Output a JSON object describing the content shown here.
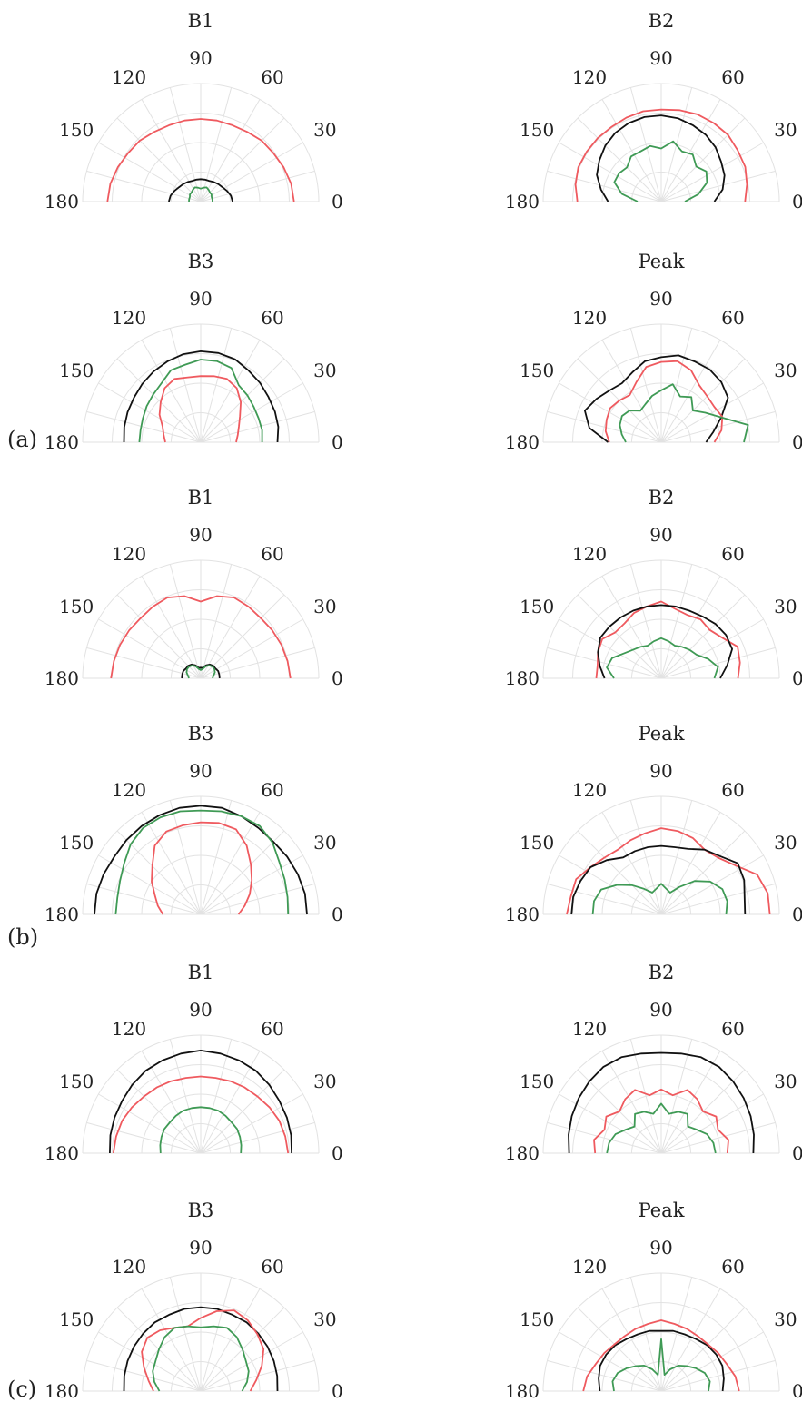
{
  "colors": {
    "black": "#111111",
    "red": "#ef5a5f",
    "green": "#3f9a55"
  },
  "panel_labels": [
    "(a)",
    "(b)",
    "(c)"
  ],
  "chart_data": [
    {
      "type": "polar-line",
      "group": "(a)",
      "title": "B1",
      "theta_ticks": [
        "0",
        "30",
        "60",
        "90",
        "120",
        "150",
        "180"
      ],
      "rlim": [
        0,
        1
      ],
      "series": [
        {
          "color": "red",
          "r": [
            0.79,
            0.78,
            0.76,
            0.74,
            0.73,
            0.71,
            0.7,
            0.7,
            0.7,
            0.7,
            0.7,
            0.71,
            0.73,
            0.74,
            0.76,
            0.78,
            0.79
          ]
        },
        {
          "color": "black",
          "r": [
            0.27,
            0.26,
            0.24,
            0.22,
            0.21,
            0.2,
            0.19,
            0.19,
            0.19,
            0.19,
            0.19,
            0.2,
            0.21,
            0.22,
            0.24,
            0.26,
            0.27
          ]
        },
        {
          "color": "green",
          "r": [
            0.1,
            0.1,
            0.1,
            0.11,
            0.11,
            0.12,
            0.13,
            0.12,
            0.11,
            0.12,
            0.13,
            0.12,
            0.11,
            0.11,
            0.1,
            0.1,
            0.1
          ]
        }
      ]
    },
    {
      "type": "polar-line",
      "group": "(a)",
      "title": "B2",
      "theta_ticks": [
        "0",
        "30",
        "60",
        "90",
        "120",
        "150",
        "180"
      ],
      "rlim": [
        0,
        1
      ],
      "series": [
        {
          "color": "red",
          "r": [
            0.71,
            0.74,
            0.77,
            0.78,
            0.8,
            0.8,
            0.8,
            0.79,
            0.78,
            0.78,
            0.77,
            0.76,
            0.76,
            0.76,
            0.76,
            0.74,
            0.71
          ]
        },
        {
          "color": "black",
          "r": [
            0.45,
            0.53,
            0.58,
            0.61,
            0.65,
            0.68,
            0.7,
            0.72,
            0.73,
            0.73,
            0.72,
            0.7,
            0.67,
            0.63,
            0.59,
            0.52,
            0.45
          ]
        },
        {
          "color": "green",
          "r": [
            0.2,
            0.32,
            0.42,
            0.46,
            0.42,
            0.48,
            0.46,
            0.52,
            0.45,
            0.48,
            0.46,
            0.46,
            0.41,
            0.43,
            0.43,
            0.34,
            0.2
          ]
        }
      ]
    },
    {
      "type": "polar-line",
      "group": "(a)",
      "title": "B3",
      "theta_ticks": [
        "0",
        "30",
        "60",
        "90",
        "120",
        "150",
        "180"
      ],
      "rlim": [
        0,
        1
      ],
      "series": [
        {
          "color": "black",
          "r": [
            0.65,
            0.67,
            0.68,
            0.69,
            0.71,
            0.73,
            0.76,
            0.77,
            0.77,
            0.76,
            0.74,
            0.72,
            0.7,
            0.68,
            0.67,
            0.66,
            0.65
          ]
        },
        {
          "color": "green",
          "r": [
            0.52,
            0.53,
            0.53,
            0.54,
            0.56,
            0.58,
            0.68,
            0.7,
            0.7,
            0.67,
            0.66,
            0.6,
            0.57,
            0.55,
            0.53,
            0.52,
            0.52
          ]
        },
        {
          "color": "red",
          "r": [
            0.3,
            0.32,
            0.35,
            0.4,
            0.48,
            0.55,
            0.58,
            0.57,
            0.56,
            0.56,
            0.58,
            0.55,
            0.48,
            0.42,
            0.35,
            0.32,
            0.3
          ]
        }
      ]
    },
    {
      "type": "polar-line",
      "group": "(a)",
      "title": "Peak",
      "theta_ticks": [
        "0",
        "30",
        "60",
        "90",
        "120",
        "150",
        "180"
      ],
      "rlim": [
        0,
        1
      ],
      "series": [
        {
          "color": "black",
          "r": [
            0.38,
            0.45,
            0.55,
            0.68,
            0.72,
            0.74,
            0.74,
            0.75,
            0.72,
            0.7,
            0.64,
            0.6,
            0.62,
            0.66,
            0.7,
            0.62,
            0.45
          ]
        },
        {
          "color": "red",
          "r": [
            0.45,
            0.52,
            0.56,
            0.54,
            0.55,
            0.58,
            0.66,
            0.7,
            0.68,
            0.65,
            0.55,
            0.48,
            0.5,
            0.52,
            0.5,
            0.48,
            0.44
          ]
        },
        {
          "color": "green",
          "r": [
            0.7,
            0.75,
            0.55,
            0.45,
            0.38,
            0.46,
            0.42,
            0.5,
            0.44,
            0.4,
            0.35,
            0.32,
            0.38,
            0.4,
            0.38,
            0.34,
            0.3
          ]
        }
      ]
    },
    {
      "type": "polar-line",
      "group": "(b)",
      "title": "B1",
      "theta_ticks": [
        "0",
        "30",
        "60",
        "90",
        "120",
        "150",
        "180"
      ],
      "rlim": [
        0,
        1
      ],
      "series": [
        {
          "color": "red",
          "r": [
            0.76,
            0.75,
            0.74,
            0.73,
            0.72,
            0.73,
            0.74,
            0.71,
            0.65,
            0.71,
            0.74,
            0.73,
            0.72,
            0.73,
            0.74,
            0.75,
            0.76
          ]
        },
        {
          "color": "black",
          "r": [
            0.16,
            0.16,
            0.16,
            0.15,
            0.15,
            0.14,
            0.12,
            0.09,
            0.09,
            0.09,
            0.12,
            0.14,
            0.15,
            0.15,
            0.16,
            0.16,
            0.16
          ]
        },
        {
          "color": "green",
          "r": [
            0.1,
            0.11,
            0.13,
            0.14,
            0.14,
            0.13,
            0.11,
            0.08,
            0.07,
            0.08,
            0.11,
            0.13,
            0.14,
            0.14,
            0.13,
            0.11,
            0.1
          ]
        }
      ]
    },
    {
      "type": "polar-line",
      "group": "(b)",
      "title": "B2",
      "theta_ticks": [
        "0",
        "30",
        "60",
        "90",
        "120",
        "150",
        "180"
      ],
      "rlim": [
        0,
        1
      ],
      "series": [
        {
          "color": "red",
          "r": [
            0.65,
            0.68,
            0.7,
            0.62,
            0.58,
            0.6,
            0.58,
            0.6,
            0.65,
            0.62,
            0.6,
            0.56,
            0.55,
            0.6,
            0.58,
            0.55,
            0.55
          ]
        },
        {
          "color": "black",
          "r": [
            0.5,
            0.57,
            0.65,
            0.66,
            0.65,
            0.63,
            0.62,
            0.62,
            0.62,
            0.62,
            0.62,
            0.62,
            0.62,
            0.62,
            0.58,
            0.53,
            0.48
          ]
        },
        {
          "color": "green",
          "r": [
            0.45,
            0.49,
            0.43,
            0.36,
            0.34,
            0.32,
            0.3,
            0.32,
            0.34,
            0.32,
            0.3,
            0.32,
            0.34,
            0.38,
            0.45,
            0.47,
            0.4
          ]
        }
      ]
    },
    {
      "type": "polar-line",
      "group": "(b)",
      "title": "B3",
      "theta_ticks": [
        "0",
        "30",
        "60",
        "90",
        "120",
        "150",
        "180"
      ],
      "rlim": [
        0,
        1
      ],
      "series": [
        {
          "color": "black",
          "r": [
            0.9,
            0.9,
            0.89,
            0.88,
            0.87,
            0.88,
            0.9,
            0.92,
            0.92,
            0.92,
            0.91,
            0.9,
            0.89,
            0.88,
            0.89,
            0.9,
            0.9
          ]
        },
        {
          "color": "green",
          "r": [
            0.74,
            0.75,
            0.77,
            0.8,
            0.86,
            0.9,
            0.9,
            0.89,
            0.88,
            0.89,
            0.89,
            0.88,
            0.84,
            0.78,
            0.74,
            0.72,
            0.72
          ]
        },
        {
          "color": "red",
          "r": [
            0.32,
            0.38,
            0.45,
            0.52,
            0.6,
            0.7,
            0.78,
            0.79,
            0.78,
            0.77,
            0.76,
            0.7,
            0.58,
            0.5,
            0.42,
            0.37,
            0.32
          ]
        }
      ]
    },
    {
      "type": "polar-line",
      "group": "(b)",
      "title": "Peak",
      "theta_ticks": [
        "0",
        "30",
        "60",
        "90",
        "120",
        "150",
        "180"
      ],
      "rlim": [
        0,
        1
      ],
      "series": [
        {
          "color": "red",
          "r": [
            0.92,
            0.92,
            0.88,
            0.75,
            0.68,
            0.66,
            0.7,
            0.72,
            0.73,
            0.7,
            0.68,
            0.66,
            0.68,
            0.72,
            0.78,
            0.78,
            0.8
          ]
        },
        {
          "color": "black",
          "r": [
            0.71,
            0.72,
            0.76,
            0.78,
            0.7,
            0.66,
            0.6,
            0.58,
            0.58,
            0.58,
            0.58,
            0.58,
            0.65,
            0.72,
            0.74,
            0.76,
            0.76
          ]
        },
        {
          "color": "green",
          "r": [
            0.55,
            0.57,
            0.56,
            0.5,
            0.4,
            0.28,
            0.2,
            0.22,
            0.26,
            0.22,
            0.2,
            0.26,
            0.35,
            0.45,
            0.55,
            0.58,
            0.58
          ]
        }
      ]
    },
    {
      "type": "polar-line",
      "group": "(c)",
      "title": "B1",
      "theta_ticks": [
        "0",
        "30",
        "60",
        "90",
        "120",
        "150",
        "180"
      ],
      "rlim": [
        0,
        1
      ],
      "series": [
        {
          "color": "black",
          "r": [
            0.77,
            0.78,
            0.79,
            0.8,
            0.82,
            0.84,
            0.85,
            0.86,
            0.87,
            0.86,
            0.85,
            0.84,
            0.82,
            0.8,
            0.79,
            0.78,
            0.77
          ]
        },
        {
          "color": "red",
          "r": [
            0.74,
            0.73,
            0.72,
            0.7,
            0.68,
            0.67,
            0.66,
            0.65,
            0.65,
            0.65,
            0.66,
            0.67,
            0.68,
            0.7,
            0.72,
            0.73,
            0.74
          ]
        },
        {
          "color": "green",
          "r": [
            0.34,
            0.35,
            0.36,
            0.37,
            0.37,
            0.38,
            0.39,
            0.39,
            0.39,
            0.39,
            0.39,
            0.38,
            0.37,
            0.37,
            0.36,
            0.35,
            0.34
          ]
        }
      ]
    },
    {
      "type": "polar-line",
      "group": "(c)",
      "title": "B2",
      "theta_ticks": [
        "0",
        "30",
        "60",
        "90",
        "120",
        "150",
        "180"
      ],
      "rlim": [
        0,
        1
      ],
      "series": [
        {
          "color": "black",
          "r": [
            0.78,
            0.8,
            0.82,
            0.84,
            0.86,
            0.88,
            0.88,
            0.86,
            0.85,
            0.86,
            0.88,
            0.88,
            0.86,
            0.84,
            0.82,
            0.8,
            0.78
          ]
        },
        {
          "color": "red",
          "r": [
            0.56,
            0.58,
            0.52,
            0.56,
            0.5,
            0.55,
            0.58,
            0.5,
            0.54,
            0.5,
            0.58,
            0.55,
            0.5,
            0.56,
            0.52,
            0.58,
            0.56
          ]
        },
        {
          "color": "green",
          "r": [
            0.46,
            0.45,
            0.42,
            0.36,
            0.32,
            0.4,
            0.38,
            0.34,
            0.42,
            0.34,
            0.38,
            0.4,
            0.32,
            0.36,
            0.42,
            0.45,
            0.46
          ]
        }
      ]
    },
    {
      "type": "polar-line",
      "group": "(c)",
      "title": "B3",
      "theta_ticks": [
        "0",
        "30",
        "60",
        "90",
        "120",
        "150",
        "180"
      ],
      "rlim": [
        0,
        1
      ],
      "series": [
        {
          "color": "black",
          "r": [
            0.65,
            0.66,
            0.67,
            0.68,
            0.69,
            0.7,
            0.7,
            0.71,
            0.71,
            0.71,
            0.7,
            0.7,
            0.69,
            0.68,
            0.67,
            0.66,
            0.65
          ]
        },
        {
          "color": "red",
          "r": [
            0.42,
            0.48,
            0.56,
            0.64,
            0.68,
            0.72,
            0.74,
            0.69,
            0.62,
            0.56,
            0.58,
            0.62,
            0.64,
            0.6,
            0.52,
            0.45,
            0.4
          ]
        },
        {
          "color": "green",
          "r": [
            0.35,
            0.4,
            0.44,
            0.46,
            0.5,
            0.55,
            0.58,
            0.56,
            0.54,
            0.56,
            0.58,
            0.55,
            0.5,
            0.46,
            0.44,
            0.4,
            0.35
          ]
        }
      ]
    },
    {
      "type": "polar-line",
      "group": "(c)",
      "title": "Peak",
      "theta_ticks": [
        "0",
        "30",
        "60",
        "90",
        "120",
        "150",
        "180"
      ],
      "rlim": [
        0,
        1
      ],
      "series": [
        {
          "color": "black",
          "r": [
            0.52,
            0.54,
            0.56,
            0.56,
            0.55,
            0.53,
            0.52,
            0.52,
            0.51,
            0.52,
            0.52,
            0.53,
            0.55,
            0.56,
            0.56,
            0.54,
            0.52
          ]
        },
        {
          "color": "red",
          "r": [
            0.66,
            0.64,
            0.6,
            0.58,
            0.56,
            0.56,
            0.57,
            0.58,
            0.6,
            0.58,
            0.57,
            0.56,
            0.56,
            0.58,
            0.6,
            0.64,
            0.66
          ]
        },
        {
          "color": "green",
          "r": [
            0.4,
            0.42,
            0.4,
            0.35,
            0.3,
            0.26,
            0.2,
            0.14,
            0.44,
            0.14,
            0.2,
            0.26,
            0.3,
            0.35,
            0.4,
            0.42,
            0.4
          ]
        }
      ]
    }
  ]
}
